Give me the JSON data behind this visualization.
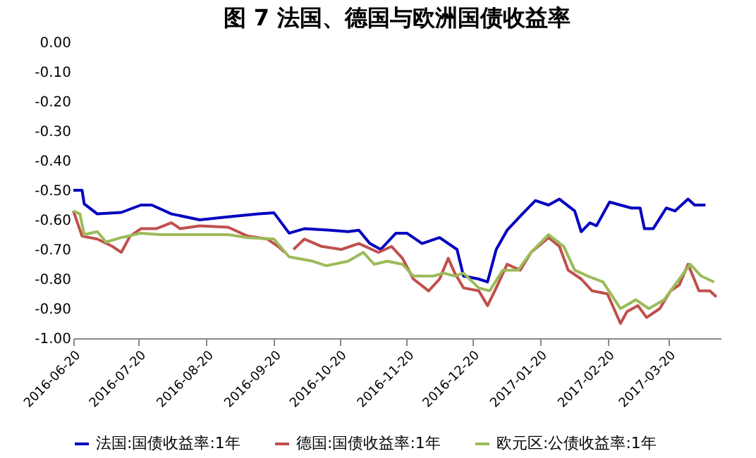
{
  "chart_data": {
    "type": "line",
    "title": "图 7  法国、德国与欧洲国债收益率",
    "xlim": [
      "2016-06-20",
      "2017-04-13"
    ],
    "xticks": [
      "2016-06-20",
      "2016-07-20",
      "2016-08-20",
      "2016-09-20",
      "2016-10-20",
      "2016-11-20",
      "2016-12-20",
      "2017-01-20",
      "2017-02-20",
      "2017-03-20"
    ],
    "ylim": [
      -1.0,
      0.0
    ],
    "yticks": [
      {
        "value": -1.0,
        "label": "-1.00"
      },
      {
        "value": -0.9,
        "label": "-0.90"
      },
      {
        "value": -0.8,
        "label": "-0.80"
      },
      {
        "value": -0.7,
        "label": "-0.70"
      },
      {
        "value": -0.6,
        "label": "-0.60"
      },
      {
        "value": -0.5,
        "label": "-0.50"
      },
      {
        "value": -0.4,
        "label": "-0.40"
      },
      {
        "value": -0.3,
        "label": "-0.30"
      },
      {
        "value": -0.2,
        "label": "-0.20"
      },
      {
        "value": -0.1,
        "label": "-0.10"
      },
      {
        "value": 0.0,
        "label": "0.00"
      }
    ],
    "grid": false,
    "legend": "bottom",
    "marker": "none",
    "line_style": "solid",
    "series": [
      {
        "name": "法国:国债收益率:1年",
        "color": "#0000c0",
        "x": [
          "2016-06-20",
          "2016-06-24",
          "2016-06-25",
          "2016-07-01",
          "2016-07-12",
          "2016-07-21",
          "2016-07-26",
          "2016-08-04",
          "2016-08-17",
          "2016-08-30",
          "2016-09-13",
          "2016-09-20",
          "2016-09-27",
          "2016-10-04",
          "2016-10-16",
          "2016-10-24",
          "2016-10-29",
          "2016-11-03",
          "2016-11-08",
          "2016-11-15",
          "2016-11-20",
          "2016-11-27",
          "2016-12-05",
          "2016-12-13",
          "2016-12-16",
          "2016-12-23",
          "2016-12-27",
          "2016-12-31",
          "2017-01-05",
          "2017-01-12",
          "2017-01-18",
          "2017-01-24",
          "2017-01-29",
          "2017-02-05",
          "2017-02-08",
          "2017-02-12",
          "2017-02-15",
          "2017-02-21",
          "2017-03-03",
          "2017-03-07",
          "2017-03-09",
          "2017-03-13",
          "2017-03-19",
          "2017-03-23",
          "2017-03-29",
          "2017-04-01",
          "2017-04-06"
        ],
        "values": [
          -0.5,
          -0.5,
          -0.546,
          -0.58,
          -0.575,
          -0.55,
          -0.55,
          -0.58,
          -0.6,
          -0.59,
          -0.58,
          -0.576,
          -0.645,
          -0.63,
          -0.635,
          -0.64,
          -0.635,
          -0.68,
          -0.7,
          -0.645,
          -0.645,
          -0.68,
          -0.66,
          -0.7,
          -0.79,
          -0.8,
          -0.81,
          -0.7,
          -0.635,
          -0.58,
          -0.535,
          -0.55,
          -0.53,
          -0.57,
          -0.64,
          -0.61,
          -0.62,
          -0.54,
          -0.56,
          -0.56,
          -0.63,
          -0.63,
          -0.56,
          -0.57,
          -0.53,
          -0.55,
          -0.55
        ]
      },
      {
        "name": "德国:国债收益率:1年",
        "color": "#c0504d",
        "x": [
          "2016-06-20",
          "2016-06-24",
          "2016-07-01",
          "2016-07-08",
          "2016-07-12",
          "2016-07-16",
          "2016-07-21",
          "2016-07-28",
          "2016-08-04",
          "2016-08-08",
          "2016-08-17",
          "2016-08-30",
          "2016-09-08",
          "2016-09-17",
          "2016-09-22",
          "2016-09-25",
          "2016-09-26",
          "2016-09-29",
          "2016-10-04",
          "2016-10-12",
          "2016-10-21",
          "2016-10-29",
          "2016-11-07",
          "2016-11-13",
          "2016-11-18",
          "2016-11-23",
          "2016-11-30",
          "2016-12-05",
          "2016-12-09",
          "2016-12-12",
          "2016-12-16",
          "2016-12-23",
          "2016-12-27",
          "2016-12-31",
          "2017-01-05",
          "2017-01-11",
          "2017-01-16",
          "2017-01-24",
          "2017-01-29",
          "2017-02-02",
          "2017-02-08",
          "2017-02-13",
          "2017-02-20",
          "2017-02-23",
          "2017-02-26",
          "2017-03-01",
          "2017-03-06",
          "2017-03-10",
          "2017-03-16",
          "2017-03-21",
          "2017-03-25",
          "2017-03-29",
          "2017-04-03",
          "2017-04-08",
          "2017-04-11"
        ],
        "values": [
          -0.57,
          -0.655,
          -0.665,
          -0.69,
          -0.71,
          -0.655,
          -0.63,
          -0.63,
          -0.61,
          -0.63,
          -0.62,
          -0.625,
          -0.655,
          -0.665,
          -0.69,
          -0.71,
          null,
          -0.7,
          -0.665,
          -0.69,
          -0.7,
          -0.68,
          -0.71,
          -0.69,
          -0.73,
          -0.8,
          -0.84,
          -0.8,
          -0.73,
          -0.78,
          -0.83,
          -0.84,
          -0.89,
          -0.83,
          -0.75,
          -0.77,
          -0.71,
          -0.66,
          -0.69,
          -0.77,
          -0.8,
          -0.84,
          -0.85,
          -0.9,
          -0.95,
          -0.91,
          -0.89,
          -0.93,
          -0.9,
          -0.84,
          -0.82,
          -0.75,
          -0.84,
          -0.84,
          -0.86
        ]
      },
      {
        "name": "欧元区:公债收益率:1年",
        "color": "#9bbb59",
        "x": [
          "2016-06-20",
          "2016-06-23",
          "2016-06-25",
          "2016-07-01",
          "2016-07-05",
          "2016-07-12",
          "2016-07-21",
          "2016-07-30",
          "2016-08-17",
          "2016-08-30",
          "2016-09-08",
          "2016-09-20",
          "2016-09-27",
          "2016-10-08",
          "2016-10-14",
          "2016-10-24",
          "2016-10-31",
          "2016-11-05",
          "2016-11-11",
          "2016-11-18",
          "2016-11-23",
          "2016-12-02",
          "2016-12-07",
          "2016-12-12",
          "2016-12-16",
          "2016-12-23",
          "2016-12-28",
          "2017-01-03",
          "2017-01-10",
          "2017-01-16",
          "2017-01-24",
          "2017-01-31",
          "2017-02-05",
          "2017-02-11",
          "2017-02-18",
          "2017-02-26",
          "2017-03-05",
          "2017-03-11",
          "2017-03-18",
          "2017-03-23",
          "2017-03-30",
          "2017-04-04",
          "2017-04-10"
        ],
        "values": [
          -0.57,
          -0.58,
          -0.65,
          -0.64,
          -0.675,
          -0.66,
          -0.645,
          -0.65,
          -0.65,
          -0.65,
          -0.66,
          -0.665,
          -0.725,
          -0.74,
          -0.755,
          -0.74,
          -0.71,
          -0.75,
          -0.74,
          -0.75,
          -0.79,
          -0.79,
          -0.78,
          -0.79,
          -0.78,
          -0.83,
          -0.84,
          -0.77,
          -0.77,
          -0.71,
          -0.65,
          -0.69,
          -0.77,
          -0.79,
          -0.81,
          -0.9,
          -0.87,
          -0.9,
          -0.87,
          -0.82,
          -0.75,
          -0.79,
          -0.81
        ]
      }
    ]
  }
}
